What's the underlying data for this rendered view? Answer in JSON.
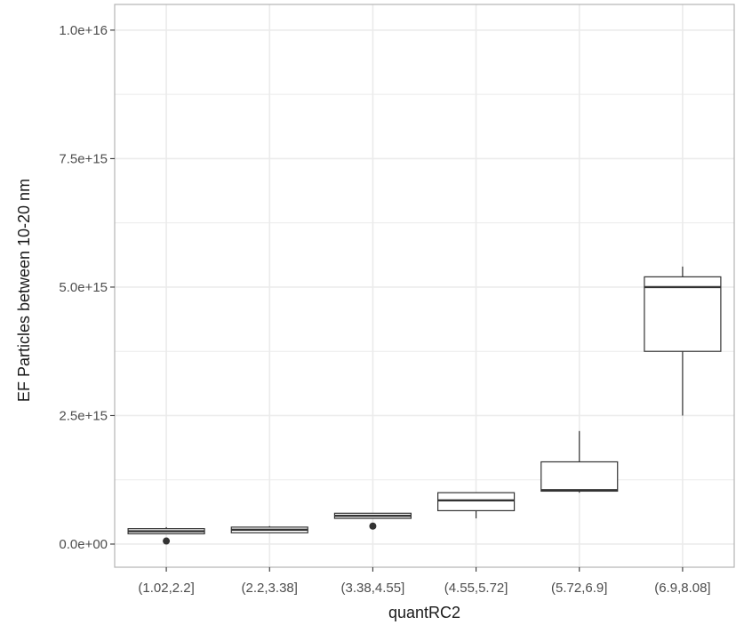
{
  "chart_data": {
    "type": "box",
    "title": "",
    "xlabel": "quantRC2",
    "ylabel": "EF Particles between 10-20 nm",
    "categories": [
      "(1.02,2.2]",
      "(2.2,3.38]",
      "(3.38,4.55]",
      "(4.55,5.72]",
      "(5.72,6.9]",
      "(6.9,8.08]"
    ],
    "y_ticks": [
      0,
      2500000000000000.0,
      5000000000000000.0,
      7500000000000000.0,
      1e+16
    ],
    "y_tick_labels": [
      "0.0e+00",
      "2.5e+15",
      "5.0e+15",
      "7.5e+15",
      "1.0e+16"
    ],
    "ylim": [
      -450000000000000.0,
      1.05e+16
    ],
    "grid": true,
    "legend": "none",
    "boxes": [
      {
        "category": "(1.02,2.2]",
        "whisker_low": 200000000000000.0,
        "q1": 200000000000000.0,
        "median": 250000000000000.0,
        "q3": 300000000000000.0,
        "whisker_high": 330000000000000.0,
        "outliers": [
          60000000000000.0
        ]
      },
      {
        "category": "(2.2,3.38]",
        "whisker_low": 220000000000000.0,
        "q1": 220000000000000.0,
        "median": 280000000000000.0,
        "q3": 330000000000000.0,
        "whisker_high": 350000000000000.0,
        "outliers": []
      },
      {
        "category": "(3.38,4.55]",
        "whisker_low": 500000000000000.0,
        "q1": 500000000000000.0,
        "median": 550000000000000.0,
        "q3": 600000000000000.0,
        "whisker_high": 600000000000000.0,
        "outliers": [
          350000000000000.0
        ]
      },
      {
        "category": "(4.55,5.72]",
        "whisker_low": 500000000000000.0,
        "q1": 650000000000000.0,
        "median": 850000000000000.0,
        "q3": 1000000000000000.0,
        "whisker_high": 1000000000000000.0,
        "outliers": []
      },
      {
        "category": "(5.72,6.9]",
        "whisker_low": 1000000000000000.0,
        "q1": 1030000000000000.0,
        "median": 1050000000000000.0,
        "q3": 1600000000000000.0,
        "whisker_high": 2200000000000000.0,
        "outliers": []
      },
      {
        "category": "(6.9,8.08]",
        "whisker_low": 2500000000000000.0,
        "q1": 3750000000000000.0,
        "median": 5000000000000000.0,
        "q3": 5200000000000000.0,
        "whisker_high": 5400000000000000.0,
        "outliers": []
      }
    ],
    "colors": {
      "box_fill": "#ffffff",
      "box_stroke": "#333333",
      "grid": "#ebebeb",
      "panel_border": "#b3b3b3",
      "outlier": "#333333"
    }
  }
}
